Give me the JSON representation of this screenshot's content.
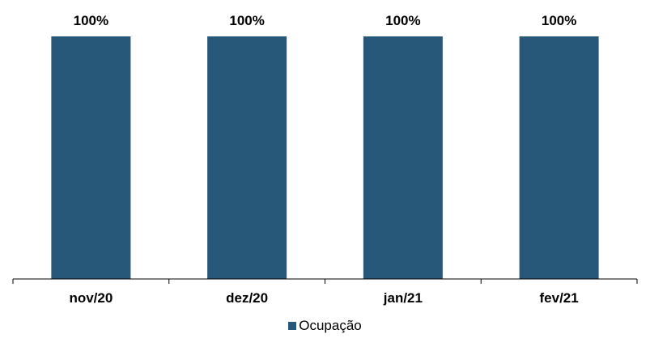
{
  "chart_data": {
    "type": "bar",
    "categories": [
      "nov/20",
      "dez/20",
      "jan/21",
      "fev/21"
    ],
    "series": [
      {
        "name": "Ocupação",
        "values": [
          100,
          100,
          100,
          100
        ],
        "labels": [
          "100%",
          "100%",
          "100%",
          "100%"
        ],
        "color": "#27587a"
      }
    ],
    "ylim": [
      0,
      100
    ],
    "grid": false,
    "legend_position": "bottom-center"
  },
  "legend": {
    "items": [
      {
        "label": "Ocupação",
        "color": "#27587a"
      }
    ]
  }
}
